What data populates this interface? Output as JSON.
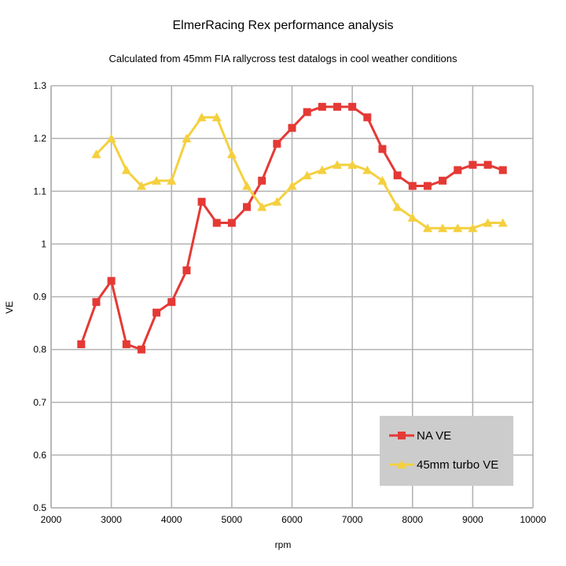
{
  "chart_data": {
    "type": "line",
    "title": "ElmerRacing Rex performance analysis",
    "subtitle": "Calculated from 45mm FIA rallycross test datalogs in cool weather conditions",
    "xlabel": "rpm",
    "ylabel": "VE",
    "xlim": [
      2000,
      10000
    ],
    "ylim": [
      0.5,
      1.3
    ],
    "xticks": [
      2000,
      3000,
      4000,
      5000,
      6000,
      7000,
      8000,
      9000,
      10000
    ],
    "yticks": [
      0.5,
      0.6,
      0.7,
      0.8,
      0.9,
      1,
      1.1,
      1.2,
      1.3
    ],
    "grid": true,
    "legend_position": "bottom-right",
    "series": [
      {
        "name": "NA VE",
        "color": "#e53935",
        "marker": "square",
        "x": [
          2500,
          2750,
          3000,
          3250,
          3500,
          3750,
          4000,
          4250,
          4500,
          4750,
          5000,
          5250,
          5500,
          5750,
          6000,
          6250,
          6500,
          6750,
          7000,
          7250,
          7500,
          7750,
          8000,
          8250,
          8500,
          8750,
          9000,
          9250,
          9500
        ],
        "values": [
          0.81,
          0.89,
          0.93,
          0.81,
          0.8,
          0.87,
          0.89,
          0.95,
          1.08,
          1.04,
          1.04,
          1.07,
          1.12,
          1.19,
          1.22,
          1.25,
          1.26,
          1.26,
          1.26,
          1.24,
          1.18,
          1.13,
          1.11,
          1.11,
          1.12,
          1.14,
          1.15,
          1.15,
          1.14
        ]
      },
      {
        "name": "45mm turbo VE",
        "color": "#f4d03f",
        "marker": "triangle",
        "x": [
          2750,
          3000,
          3250,
          3500,
          3750,
          4000,
          4250,
          4500,
          4750,
          5000,
          5250,
          5500,
          5750,
          6000,
          6250,
          6500,
          6750,
          7000,
          7250,
          7500,
          7750,
          8000,
          8250,
          8500,
          8750,
          9000,
          9250,
          9500
        ],
        "values": [
          1.17,
          1.2,
          1.14,
          1.11,
          1.12,
          1.12,
          1.2,
          1.24,
          1.24,
          1.17,
          1.11,
          1.07,
          1.08,
          1.11,
          1.13,
          1.14,
          1.15,
          1.15,
          1.14,
          1.12,
          1.07,
          1.05,
          1.03,
          1.03,
          1.03,
          1.03,
          1.04,
          1.04
        ]
      }
    ]
  }
}
